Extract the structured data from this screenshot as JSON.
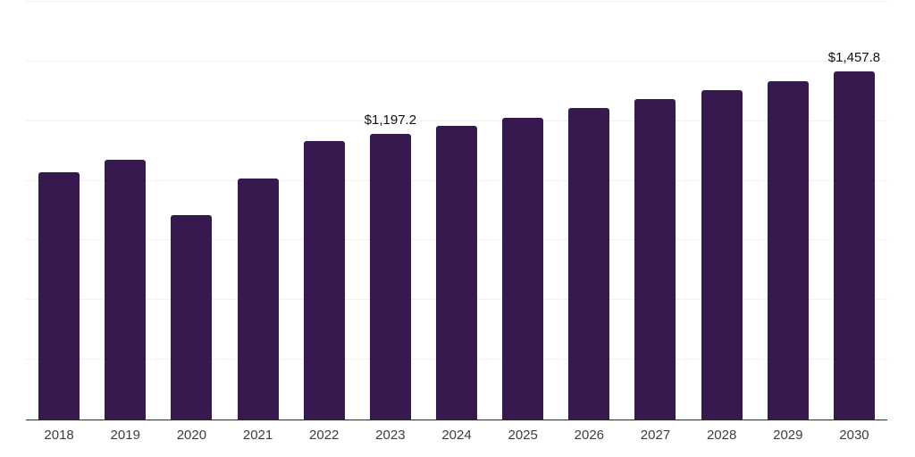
{
  "chart_data": {
    "type": "bar",
    "title": "",
    "categories": [
      "2018",
      "2019",
      "2020",
      "2021",
      "2022",
      "2023",
      "2024",
      "2025",
      "2026",
      "2027",
      "2028",
      "2029",
      "2030"
    ],
    "values": [
      1035,
      1090,
      855,
      1010,
      1168,
      1197.2,
      1232,
      1265,
      1305,
      1342,
      1380,
      1418,
      1457.8
    ],
    "data_labels": [
      "",
      "",
      "",
      "",
      "",
      "$1,197.2",
      "",
      "",
      "",
      "",
      "",
      "",
      "$1,457.8"
    ],
    "value_prefix": "$",
    "ylim": [
      0,
      1750
    ],
    "gridline_step": 250,
    "grid": "horizontal",
    "legend": "none",
    "y_axis_labels_visible": false,
    "colors": {
      "bar": "#36194f",
      "grid": "#f1f1f1",
      "axis": "#2d2d2d",
      "tick_label": "#3d3d3d",
      "data_label": "#111111",
      "background": "#ffffff"
    }
  }
}
